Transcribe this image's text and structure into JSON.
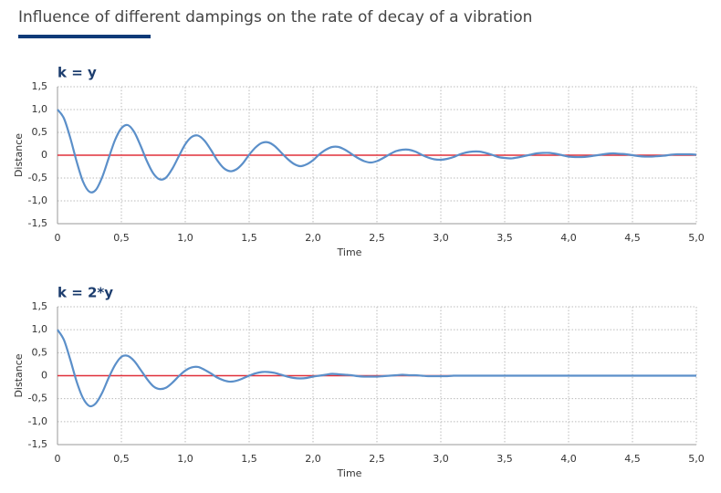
{
  "title": "Influence of different dampings on the rate of decay of a vibration",
  "chart_data": [
    {
      "type": "line",
      "title": "k = y",
      "x_label": "Time",
      "y_label": "Distance",
      "color": "#5b8fc9",
      "grid": true,
      "reference_line": {
        "value": 0,
        "color": "#e0303a"
      },
      "xlim": [
        0,
        5
      ],
      "ylim": [
        -1.5,
        1.5
      ],
      "xticks": [
        0,
        {
          "value": 0.5,
          "label": "0,5"
        },
        {
          "value": 1,
          "label": "1,0"
        },
        {
          "value": 1.5,
          "label": "1,5"
        },
        {
          "value": 2,
          "label": "2,0"
        },
        {
          "value": 2.5,
          "label": "2,5"
        },
        {
          "value": 3,
          "label": "3,0"
        },
        {
          "value": 3.5,
          "label": "3,5"
        },
        {
          "value": 4,
          "label": "4,0"
        },
        {
          "value": 4.5,
          "label": "4,5"
        },
        {
          "value": 5,
          "label": "5,0"
        }
      ],
      "yticks": [
        {
          "value": -1.5,
          "label": "-1,5"
        },
        {
          "value": -1,
          "label": "-1,0"
        },
        {
          "value": -0.5,
          "label": "-0,5"
        },
        0,
        {
          "value": 0.5,
          "label": "0,5"
        },
        {
          "value": 1,
          "label": "1,0"
        },
        {
          "value": 1.5,
          "label": "1,5"
        }
      ],
      "x": [
        0,
        0.05,
        0.1,
        0.15,
        0.2,
        0.25,
        0.3,
        0.35,
        0.4,
        0.45,
        0.5,
        0.55,
        0.6,
        0.65,
        0.7,
        0.75,
        0.8,
        0.85,
        0.9,
        0.95,
        1,
        1.05,
        1.1,
        1.15,
        1.2,
        1.25,
        1.3,
        1.35,
        1.4,
        1.45,
        1.5,
        1.55,
        1.6,
        1.65,
        1.7,
        1.75,
        1.8,
        1.85,
        1.9,
        1.95,
        2,
        2.05,
        2.1,
        2.15,
        2.2,
        2.25,
        2.3,
        2.35,
        2.4,
        2.45,
        2.5,
        2.55,
        2.6,
        2.65,
        2.7,
        2.75,
        2.8,
        2.85,
        2.9,
        2.95,
        3,
        3.05,
        3.1,
        3.15,
        3.2,
        3.25,
        3.3,
        3.35,
        3.4,
        3.45,
        3.5,
        3.55,
        3.6,
        3.65,
        3.7,
        3.75,
        3.8,
        3.85,
        3.9,
        3.95,
        4,
        4.05,
        4.1,
        4.15,
        4.2,
        4.25,
        4.3,
        4.35,
        4.4,
        4.45,
        4.5,
        4.55,
        4.6,
        4.65,
        4.7,
        4.75,
        4.8,
        4.85,
        4.9,
        4.95,
        5
      ],
      "values": [
        1.0,
        0.81,
        0.38,
        -0.14,
        -0.58,
        -0.8,
        -0.76,
        -0.48,
        -0.07,
        0.33,
        0.59,
        0.66,
        0.51,
        0.21,
        -0.13,
        -0.4,
        -0.53,
        -0.49,
        -0.29,
        -0.02,
        0.24,
        0.4,
        0.43,
        0.32,
        0.12,
        -0.11,
        -0.28,
        -0.35,
        -0.31,
        -0.18,
        0.01,
        0.17,
        0.27,
        0.28,
        0.2,
        0.06,
        -0.08,
        -0.19,
        -0.24,
        -0.2,
        -0.11,
        0.02,
        0.12,
        0.18,
        0.18,
        0.12,
        0.03,
        -0.06,
        -0.13,
        -0.16,
        -0.13,
        -0.06,
        0.02,
        0.09,
        0.12,
        0.12,
        0.08,
        0.01,
        -0.05,
        -0.09,
        -0.1,
        -0.08,
        -0.04,
        0.02,
        0.06,
        0.08,
        0.08,
        0.05,
        0.01,
        -0.04,
        -0.06,
        -0.07,
        -0.05,
        -0.02,
        0.01,
        0.04,
        0.05,
        0.05,
        0.03,
        0.0,
        -0.03,
        -0.04,
        -0.04,
        -0.03,
        -0.01,
        0.01,
        0.03,
        0.04,
        0.03,
        0.02,
        0.0,
        -0.02,
        -0.03,
        -0.03,
        -0.02,
        -0.01,
        0.01,
        0.02,
        0.02,
        0.02,
        0.01
      ]
    },
    {
      "type": "line",
      "title": "k = 2*y",
      "x_label": "Time",
      "y_label": "Distance",
      "color": "#5b8fc9",
      "grid": true,
      "reference_line": {
        "value": 0,
        "color": "#e0303a"
      },
      "xlim": [
        0,
        5
      ],
      "ylim": [
        -1.5,
        1.5
      ],
      "xticks": [
        0,
        {
          "value": 0.5,
          "label": "0,5"
        },
        {
          "value": 1,
          "label": "1,0"
        },
        {
          "value": 1.5,
          "label": "1,5"
        },
        {
          "value": 2,
          "label": "2,0"
        },
        {
          "value": 2.5,
          "label": "2,5"
        },
        {
          "value": 3,
          "label": "3,0"
        },
        {
          "value": 3.5,
          "label": "3,5"
        },
        {
          "value": 4,
          "label": "4,0"
        },
        {
          "value": 4.5,
          "label": "4,5"
        },
        {
          "value": 5,
          "label": "5,0"
        }
      ],
      "yticks": [
        {
          "value": -1.5,
          "label": "-1,5"
        },
        {
          "value": -1,
          "label": "-1,0"
        },
        {
          "value": -0.5,
          "label": "-0,5"
        },
        0,
        {
          "value": 0.5,
          "label": "0,5"
        },
        {
          "value": 1,
          "label": "1,0"
        },
        {
          "value": 1.5,
          "label": "1,5"
        }
      ],
      "x": [
        0,
        0.05,
        0.1,
        0.15,
        0.2,
        0.25,
        0.3,
        0.35,
        0.4,
        0.45,
        0.5,
        0.55,
        0.6,
        0.65,
        0.7,
        0.75,
        0.8,
        0.85,
        0.9,
        0.95,
        1,
        1.05,
        1.1,
        1.15,
        1.2,
        1.25,
        1.3,
        1.35,
        1.4,
        1.45,
        1.5,
        1.55,
        1.6,
        1.65,
        1.7,
        1.75,
        1.8,
        1.85,
        1.9,
        1.95,
        2,
        2.05,
        2.1,
        2.15,
        2.2,
        2.25,
        2.3,
        2.35,
        2.4,
        2.45,
        2.5,
        2.55,
        2.6,
        2.65,
        2.7,
        2.75,
        2.8,
        2.85,
        2.9,
        2.95,
        3,
        3.05,
        3.1,
        3.15,
        3.2,
        3.25,
        3.3,
        3.35,
        3.4,
        3.45,
        3.5,
        3.55,
        3.6,
        3.65,
        3.7,
        3.75,
        3.8,
        3.85,
        3.9,
        3.95,
        4,
        4.05,
        4.1,
        4.15,
        4.2,
        4.25,
        4.3,
        4.35,
        4.4,
        4.45,
        4.5,
        4.55,
        4.6,
        4.65,
        4.7,
        4.75,
        4.8,
        4.85,
        4.9,
        4.95,
        5
      ],
      "values": [
        1.0,
        0.78,
        0.35,
        -0.13,
        -0.49,
        -0.66,
        -0.6,
        -0.37,
        -0.05,
        0.23,
        0.41,
        0.43,
        0.32,
        0.13,
        -0.07,
        -0.23,
        -0.29,
        -0.26,
        -0.15,
        -0.01,
        0.11,
        0.18,
        0.19,
        0.13,
        0.05,
        -0.04,
        -0.1,
        -0.13,
        -0.11,
        -0.06,
        0.0,
        0.05,
        0.08,
        0.08,
        0.06,
        0.02,
        -0.02,
        -0.05,
        -0.06,
        -0.05,
        -0.02,
        0.0,
        0.02,
        0.04,
        0.03,
        0.02,
        0.01,
        -0.01,
        -0.02,
        -0.02,
        -0.02,
        -0.01,
        0.0,
        0.01,
        0.02,
        0.01,
        0.01,
        0.0,
        -0.01,
        -0.01,
        -0.01,
        -0.01,
        0.0,
        0,
        0,
        0,
        0,
        0,
        0,
        0,
        0,
        0,
        0,
        0,
        0,
        0,
        0,
        0,
        0,
        0,
        0,
        0,
        0,
        0,
        0,
        0,
        0,
        0,
        0,
        0,
        0,
        0,
        0,
        0,
        0,
        0,
        0,
        0,
        0,
        0,
        0
      ]
    }
  ]
}
